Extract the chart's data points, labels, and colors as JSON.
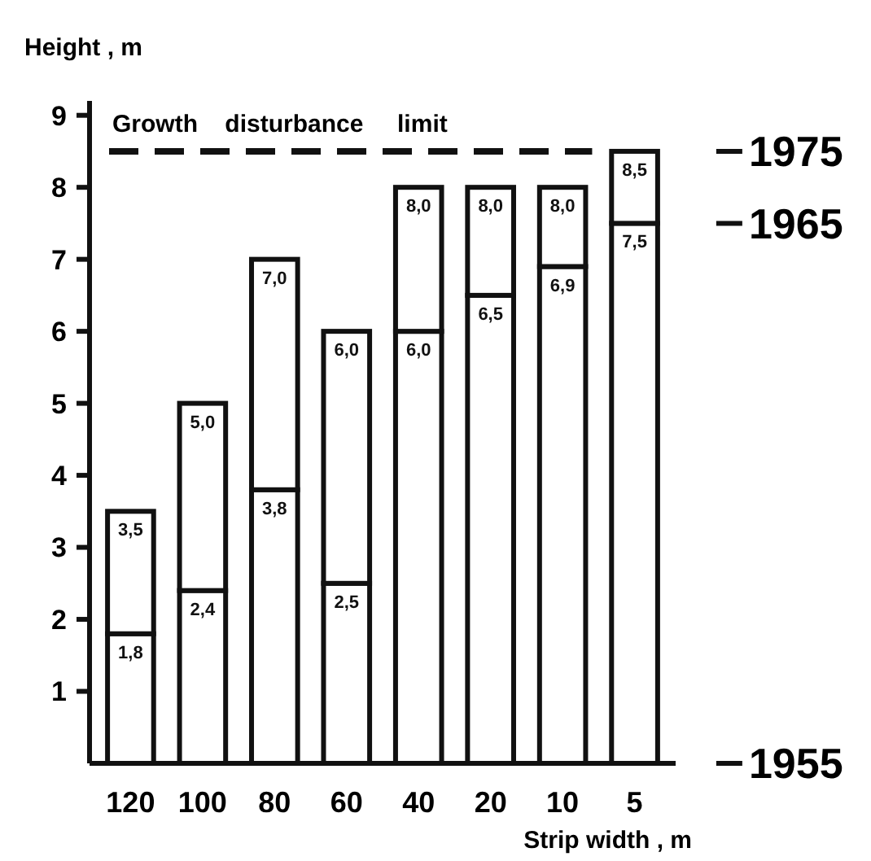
{
  "chart_data": {
    "type": "bar",
    "stacked": true,
    "ylabel": "Height , m",
    "xlabel": "Strip width , m",
    "categories": [
      "120",
      "100",
      "80",
      "60",
      "40",
      "20",
      "10",
      "5"
    ],
    "series": [
      {
        "color": "#ffffff",
        "values": [
          1.8,
          2.4,
          3.8,
          2.5,
          6.0,
          6.5,
          6.9,
          7.5
        ],
        "value_labels": [
          "1,8",
          "2,4",
          "3,8",
          "2,5",
          "6,0",
          "6,5",
          "6,9",
          "7,5"
        ]
      },
      {
        "color": "#ffffff",
        "values": [
          1.7,
          2.6,
          3.2,
          3.5,
          2.0,
          1.5,
          1.1,
          1.0
        ]
      }
    ],
    "totals": [
      "3,5",
      "5,0",
      "7,0",
      "6,0",
      "8,0",
      "8,0",
      "8,0",
      "8,5"
    ],
    "ylim": [
      0,
      9.2
    ],
    "yticks": [
      1,
      2,
      3,
      4,
      5,
      6,
      7,
      8,
      9
    ],
    "grid": false,
    "ref_lines": [
      {
        "axis": "y",
        "value": 8.5,
        "label": "Growth    disturbance     limit",
        "line_style": "dashed",
        "color": "#111111"
      }
    ],
    "annotations": [
      {
        "text": "1975",
        "x": "5",
        "y": 8.5
      },
      {
        "text": "1965",
        "x": "5",
        "y": 7.5
      },
      {
        "text": "1955",
        "x": "5",
        "y": 0
      }
    ]
  }
}
